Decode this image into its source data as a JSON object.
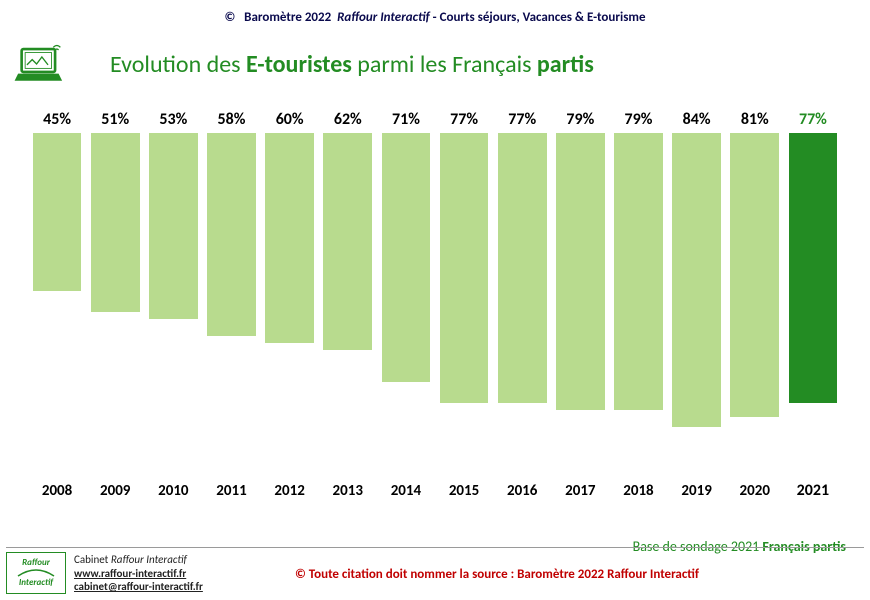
{
  "header": {
    "copyright": "©",
    "prefix": "Baromètre 2022",
    "org": "Raffour Interactif",
    "sep": " - ",
    "suffix": "Courts séjours, Vacances & E-tourisme"
  },
  "title": {
    "t1": "Evolution des ",
    "t2": "E-touristes",
    "t3": " parmi les Français ",
    "t4": "partis"
  },
  "chart": {
    "type": "bar",
    "ylim_max": 100,
    "value_suffix": "%",
    "default_bar_color": "#b8db8e",
    "default_value_color": "#000000",
    "highlight_bar_color": "#238c23",
    "highlight_value_color": "#238c23",
    "label_color_normal": "#000000",
    "label_color_highlight": "#000000",
    "years": [
      "2008",
      "2009",
      "2010",
      "2011",
      "2012",
      "2013",
      "2014",
      "2015",
      "2016",
      "2017",
      "2018",
      "2019",
      "2020",
      "2021"
    ],
    "values": [
      45,
      51,
      53,
      58,
      60,
      62,
      71,
      77,
      77,
      79,
      79,
      84,
      81,
      77
    ],
    "highlight_index": 13,
    "label_fontweight_highlight": "bold"
  },
  "baseline": {
    "prefix": "Base de sondage 2021 ",
    "bold": "Français partis"
  },
  "footer": {
    "logo_line1": "Raffour",
    "logo_line2": "Interactif",
    "line1a": "Cabinet ",
    "line1b": "Raffour Interactif",
    "line2": "www.raffour-interactif.fr",
    "line3": "cabinet@raffour-interactif.fr",
    "citation": "©  Toute citation doit nommer la source : Baromètre 2022 Raffour Interactif"
  }
}
